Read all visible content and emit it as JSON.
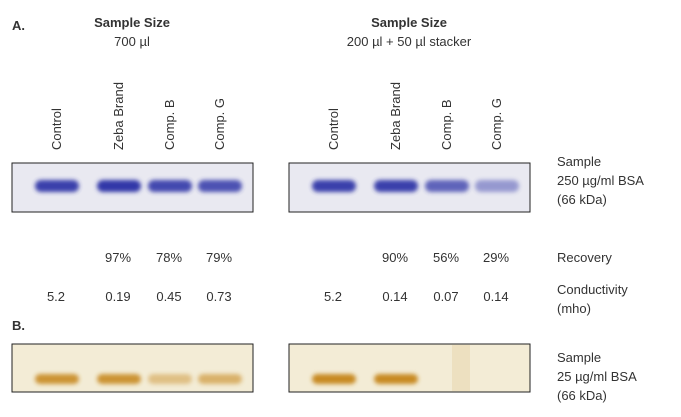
{
  "panel_a": {
    "label": "A.",
    "groups": [
      {
        "title": "Sample Size",
        "volume": "700 µl",
        "lanes": [
          "Control",
          "Zeba Brand",
          "Comp. B",
          "Comp. G"
        ],
        "recovery": [
          "97%",
          "78%",
          "79%"
        ],
        "conductivity": [
          "5.2",
          "0.19",
          "0.45",
          "0.73"
        ]
      },
      {
        "title": "Sample Size",
        "volume": "200 µl + 50 µl stacker",
        "lanes": [
          "Control",
          "Zeba Brand",
          "Comp. B",
          "Comp. G"
        ],
        "recovery": [
          "90%",
          "56%",
          "29%"
        ],
        "conductivity": [
          "5.2",
          "0.14",
          "0.07",
          "0.14"
        ]
      }
    ],
    "sample": [
      "Sample",
      "250 µg/ml BSA",
      "(66 kDa)"
    ],
    "recovery_label": "Recovery",
    "conductivity_label": [
      "Conductivity",
      "(mho)"
    ]
  },
  "panel_b": {
    "label": "B.",
    "sample": [
      "Sample",
      "25 µg/ml BSA",
      "(66 kDa)"
    ]
  }
}
